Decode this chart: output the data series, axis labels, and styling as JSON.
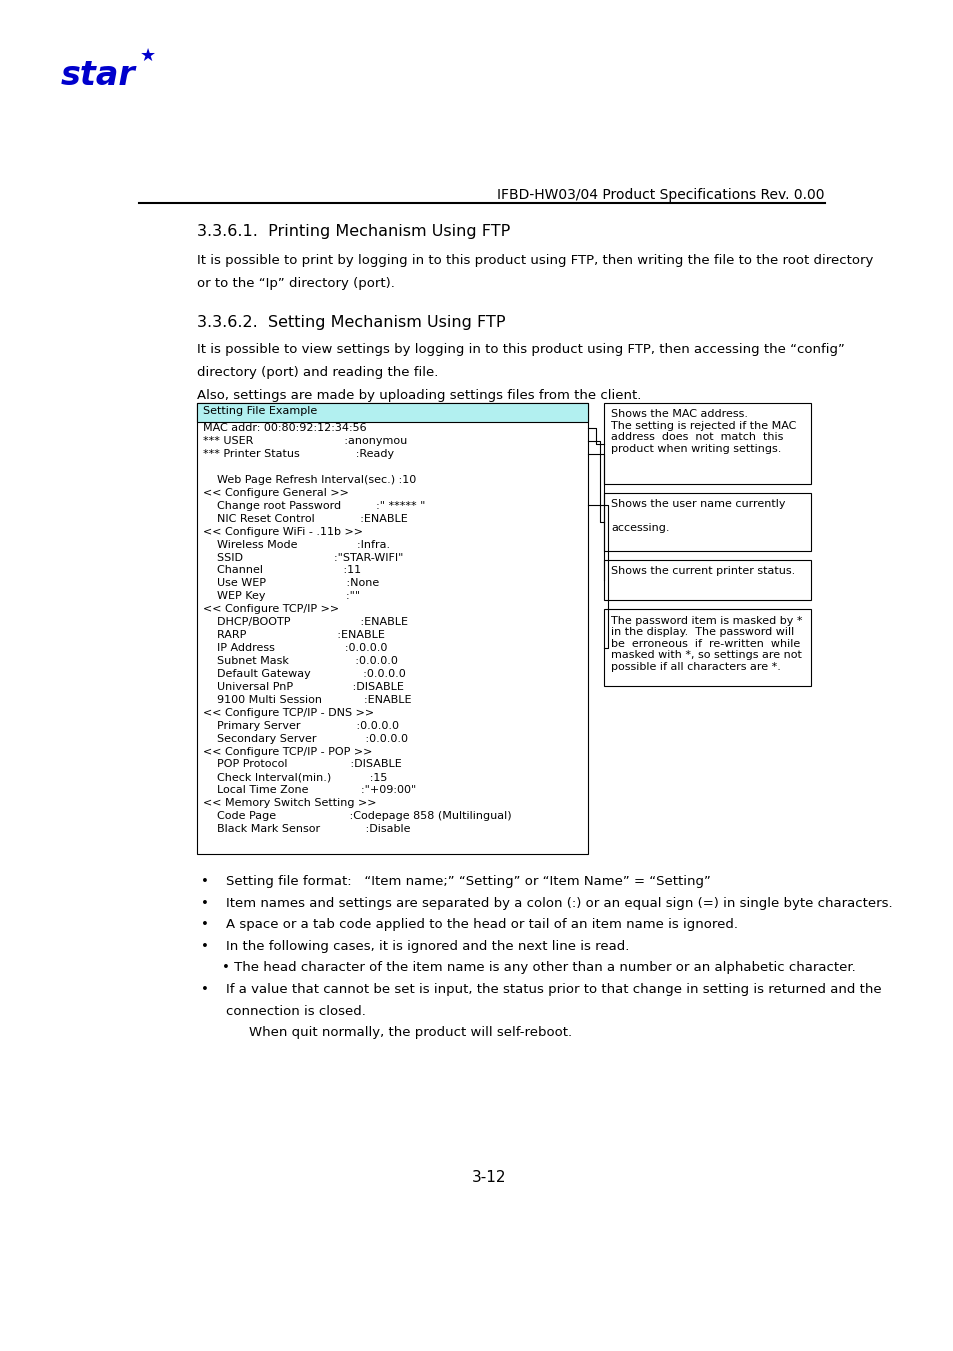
{
  "page_width": 9.54,
  "page_height": 13.51,
  "bg_color": "#ffffff",
  "header_line_color": "#000000",
  "header_text": "IFBD-HW03/04 Product Specifications Rev. 0.00",
  "section1_title": "3.3.6.1.  Printing Mechanism Using FTP",
  "section1_body1": "It is possible to print by logging in to this product using FTP, then writing the file to the root directory",
  "section1_body2": "or to the “Ip” directory (port).",
  "section2_title": "3.3.6.2.  Setting Mechanism Using FTP",
  "section2_body1": "It is possible to view settings by logging in to this product using FTP, then accessing the “config”",
  "section2_body2": "directory (port) and reading the file.",
  "section2_body3": "Also, settings are made by uploading settings files from the client.",
  "table_header": "Setting File Example",
  "table_header_bg": "#b2f0f0",
  "table_content": [
    "MAC addr: 00:80:92:12:34:56",
    "*** USER                          :anonymou",
    "*** Printer Status                :Ready",
    "",
    "    Web Page Refresh Interval(sec.) :10",
    "<< Configure General >>",
    "    Change root Password          :\" ***** \"",
    "    NIC Reset Control             :ENABLE",
    "<< Configure WiFi - .11b >>",
    "    Wireless Mode                 :Infra.",
    "    SSID                          :\"STAR-WIFI\"",
    "    Channel                       :11",
    "    Use WEP                       :None",
    "    WEP Key                       :\"\"",
    "<< Configure TCP/IP >>",
    "    DHCP/BOOTP                    :ENABLE",
    "    RARP                          :ENABLE",
    "    IP Address                    :0.0.0.0",
    "    Subnet Mask                   :0.0.0.0",
    "    Default Gateway               :0.0.0.0",
    "    Universal PnP                 :DISABLE",
    "    9100 Multi Session            :ENABLE",
    "<< Configure TCP/IP - DNS >>",
    "    Primary Server                :0.0.0.0",
    "    Secondary Server              :0.0.0.0",
    "<< Configure TCP/IP - POP >>",
    "    POP Protocol                  :DISABLE",
    "    Check Interval(min.)           :15",
    "    Local Time Zone               :\"+09:00\"",
    "<< Memory Switch Setting >>",
    "    Code Page                     :Codepage 858 (Multilingual)",
    "    Black Mark Sensor             :Disable"
  ],
  "callout1_text": "Shows the MAC address.\nThe setting is rejected if the MAC\naddress  does  not  match  this\nproduct when writing settings.",
  "callout2_text": "Shows the user name currently\n\naccessing.",
  "callout3_text": "Shows the current printer status.",
  "callout4_text": "The password item is masked by *\nin the display.  The password will\nbe  erroneous  if  re-written  while\nmasked with *, so settings are not\npossible if all characters are *.",
  "bullet_items": [
    "Setting file format:   “Item name;” “Setting” or “Item Name” = “Setting”",
    "Item names and settings are separated by a colon (:) or an equal sign (=) in single byte characters.",
    "A space or a tab code applied to the head or tail of an item name is ignored.",
    "In the following cases, it is ignored and the next line is read.",
    "• The head character of the item name is any other than a number or an alphabetic character.",
    "If a value that cannot be set is input, the status prior to that change in setting is returned and the\nconnection is closed.",
    "When quit normally, the product will self-reboot."
  ],
  "footer_text": "3-12",
  "blue_color": "#0000cc",
  "text_color": "#000000",
  "font_size_body": 9.5,
  "font_size_table": 8.0,
  "font_size_callout": 8.0,
  "font_size_section": 11.5,
  "font_size_header": 10.0
}
